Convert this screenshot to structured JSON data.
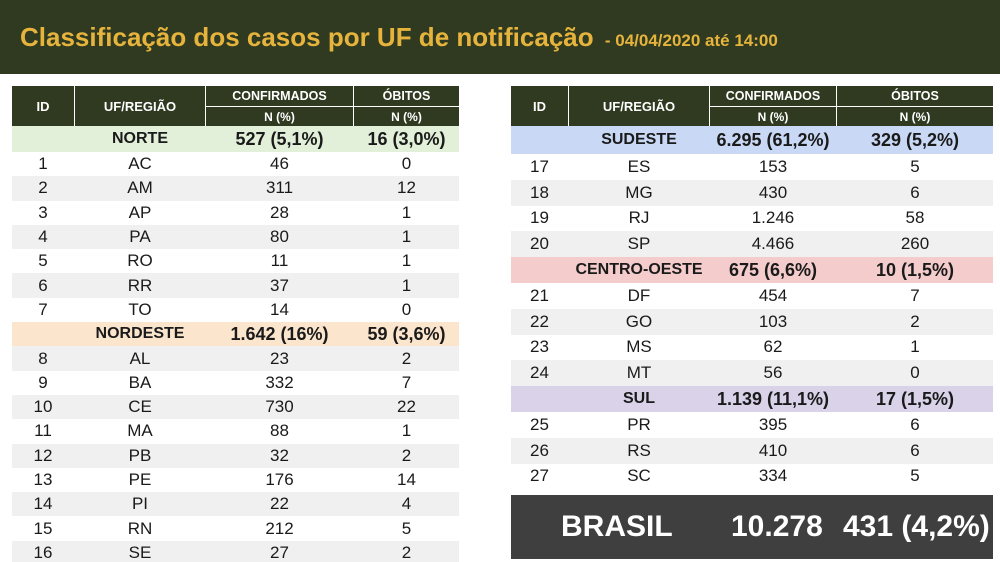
{
  "title": {
    "main": "Classificação dos casos por UF de notificação",
    "sub": "- 04/04/2020 até 14:00"
  },
  "headers": {
    "id": "ID",
    "uf": "UF/REGIÃO",
    "confirmed": "CONFIRMADOS",
    "deaths": "ÓBITOS",
    "n_pct": "N (%)"
  },
  "left_rows": [
    {
      "type": "region",
      "cls": "norte",
      "name": "NORTE",
      "confirmed": "527 (5,1%)",
      "deaths": "16 (3,0%)"
    },
    {
      "id": "1",
      "uf": "AC",
      "confirmed": "46",
      "deaths": "0"
    },
    {
      "id": "2",
      "uf": "AM",
      "confirmed": "311",
      "deaths": "12"
    },
    {
      "id": "3",
      "uf": "AP",
      "confirmed": "28",
      "deaths": "1"
    },
    {
      "id": "4",
      "uf": "PA",
      "confirmed": "80",
      "deaths": "1"
    },
    {
      "id": "5",
      "uf": "RO",
      "confirmed": "11",
      "deaths": "1"
    },
    {
      "id": "6",
      "uf": "RR",
      "confirmed": "37",
      "deaths": "1"
    },
    {
      "id": "7",
      "uf": "TO",
      "confirmed": "14",
      "deaths": "0"
    },
    {
      "type": "region",
      "cls": "nordeste",
      "name": "NORDESTE",
      "confirmed": "1.642 (16%)",
      "deaths": "59 (3,6%)"
    },
    {
      "id": "8",
      "uf": "AL",
      "confirmed": "23",
      "deaths": "2"
    },
    {
      "id": "9",
      "uf": "BA",
      "confirmed": "332",
      "deaths": "7"
    },
    {
      "id": "10",
      "uf": "CE",
      "confirmed": "730",
      "deaths": "22"
    },
    {
      "id": "11",
      "uf": "MA",
      "confirmed": "88",
      "deaths": "1"
    },
    {
      "id": "12",
      "uf": "PB",
      "confirmed": "32",
      "deaths": "2"
    },
    {
      "id": "13",
      "uf": "PE",
      "confirmed": "176",
      "deaths": "14"
    },
    {
      "id": "14",
      "uf": "PI",
      "confirmed": "22",
      "deaths": "4"
    },
    {
      "id": "15",
      "uf": "RN",
      "confirmed": "212",
      "deaths": "5"
    },
    {
      "id": "16",
      "uf": "SE",
      "confirmed": "27",
      "deaths": "2"
    }
  ],
  "right_rows": [
    {
      "type": "region",
      "cls": "sudeste",
      "name": "SUDESTE",
      "confirmed": "6.295 (61,2%)",
      "deaths": "329 (5,2%)"
    },
    {
      "id": "17",
      "uf": "ES",
      "confirmed": "153",
      "deaths": "5"
    },
    {
      "id": "18",
      "uf": "MG",
      "confirmed": "430",
      "deaths": "6"
    },
    {
      "id": "19",
      "uf": "RJ",
      "confirmed": "1.246",
      "deaths": "58"
    },
    {
      "id": "20",
      "uf": "SP",
      "confirmed": "4.466",
      "deaths": "260"
    },
    {
      "type": "region",
      "cls": "centro",
      "name": "CENTRO-OESTE",
      "confirmed": "675 (6,6%)",
      "deaths": "10 (1,5%)"
    },
    {
      "id": "21",
      "uf": "DF",
      "confirmed": "454",
      "deaths": "7"
    },
    {
      "id": "22",
      "uf": "GO",
      "confirmed": "103",
      "deaths": "2"
    },
    {
      "id": "23",
      "uf": "MS",
      "confirmed": "62",
      "deaths": "1"
    },
    {
      "id": "24",
      "uf": "MT",
      "confirmed": "56",
      "deaths": "0"
    },
    {
      "type": "region",
      "cls": "sul",
      "name": "SUL",
      "confirmed": "1.139 (11,1%)",
      "deaths": "17 (1,5%)"
    },
    {
      "id": "25",
      "uf": "PR",
      "confirmed": "395",
      "deaths": "6"
    },
    {
      "id": "26",
      "uf": "RS",
      "confirmed": "410",
      "deaths": "6"
    },
    {
      "id": "27",
      "uf": "SC",
      "confirmed": "334",
      "deaths": "5"
    }
  ],
  "total": {
    "label": "BRASIL",
    "confirmed": "10.278",
    "deaths": "431 (4,2%)"
  }
}
